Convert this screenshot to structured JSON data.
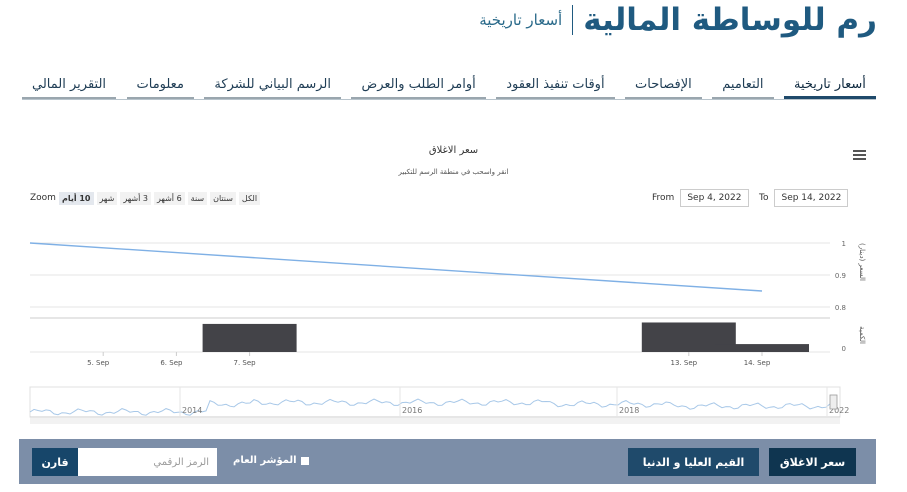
{
  "header": {
    "company_title": "رم للوساطة المالية",
    "section_title": "أسعار تاريخية"
  },
  "tabs": [
    {
      "label": "أسعار تاريخية",
      "active": true
    },
    {
      "label": "التعاميم",
      "active": false
    },
    {
      "label": "الإفصاحات",
      "active": false
    },
    {
      "label": "أوقات تنفيذ العقود",
      "active": false
    },
    {
      "label": "أوامر الطلب والعرض",
      "active": false
    },
    {
      "label": "الرسم البياني للشركة",
      "active": false
    },
    {
      "label": "معلومات",
      "active": false
    },
    {
      "label": "التقرير المالي",
      "active": false
    }
  ],
  "chart": {
    "title": "سعر الاغلاق",
    "subtitle": "انقر واسحب في منطقة الرسم للتكبير",
    "menu_icon": "hamburger-icon",
    "zoom_label": "Zoom",
    "zoom_buttons": [
      "10 أيام",
      "شهر",
      "3 أشهر",
      "6 أشهر",
      "سنة",
      "سنتان",
      "الكل"
    ],
    "zoom_selected": "10 أيام",
    "range_from_label": "From",
    "range_from": "Sep 4, 2022",
    "range_to_label": "To",
    "range_to": "Sep 14, 2022"
  },
  "chart_data": {
    "type": "line",
    "price_axis_label": "السعر (دينار)",
    "volume_axis_label": "الكمية",
    "price_ticks": [
      "1",
      "0.9",
      "0.8"
    ],
    "volume_ticks": [
      "0"
    ],
    "price_ylim": [
      0.8,
      1.0
    ],
    "x_ticks": [
      "5. Sep",
      "6. Sep",
      "7. Sep",
      "13. Sep",
      "14. Sep"
    ],
    "price_series": {
      "x": [
        "Sep 4",
        "Sep 14"
      ],
      "values": [
        1.0,
        0.85
      ]
    },
    "volume_series": {
      "x": [
        "7. Sep",
        "13. Sep",
        "14. Sep"
      ],
      "values": [
        0.78,
        0.82,
        0.22
      ]
    },
    "navigator_ticks": [
      "2014",
      "2016",
      "2018",
      "2022"
    ],
    "colors": {
      "line": "#7fb0e5",
      "bars": "#434348",
      "navigator": "#a8c8e8"
    }
  },
  "bottom_bar": {
    "close_price_button": "سعر الاغلاق",
    "high_low_button": "القيم العليا و الدنيا",
    "general_index_label": "المؤشر العام",
    "symbol_placeholder": "الرمز الرقمي",
    "compare_button": "قارن"
  }
}
